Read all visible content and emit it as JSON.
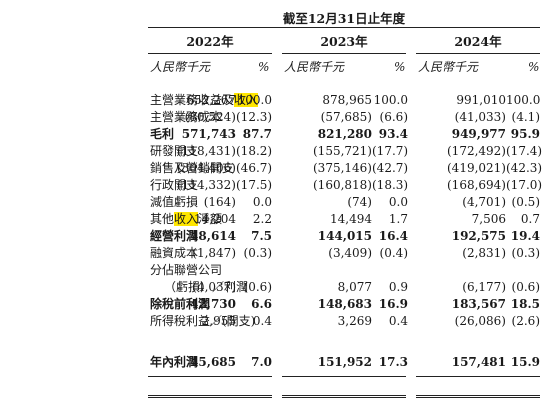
{
  "header": {
    "period": "截至12月31日止年度",
    "years": [
      {
        "year": "2022年",
        "currency": "人民幣千元",
        "pct": "%"
      },
      {
        "year": "2023年",
        "currency": "人民幣千元",
        "pct": "%"
      },
      {
        "year": "2024年",
        "currency": "人民幣千元",
        "pct": "%"
      }
    ]
  },
  "rows": [
    {
      "label": "主營業務收益及",
      "highlight": "收入",
      "label_after": "",
      "v": [
        "652,267",
        "100.0",
        "878,965",
        "100.0",
        "991,010",
        "100.0"
      ]
    },
    {
      "label": "主營業務成本",
      "v": [
        "(80,524)",
        "(12.3)",
        "(57,685)",
        "(6.6)",
        "(41,033)",
        "(4.1)"
      ]
    },
    {
      "label": "毛利",
      "bold": true,
      "v": [
        "571,743",
        "87.7",
        "821,280",
        "93.4",
        "949,977",
        "95.9"
      ]
    },
    {
      "label": "研發開支",
      "v": [
        "(118,431)",
        "(18.2)",
        "(155,721)",
        "(17.7)",
        "(172,492)",
        "(17.4)"
      ]
    },
    {
      "label": "銷售及營銷開支",
      "v": [
        "(304,406)",
        "(46.7)",
        "(375,146)",
        "(42.7)",
        "(419,021)",
        "(42.3)"
      ]
    },
    {
      "label": "行政開支",
      "v": [
        "(114,332)",
        "(17.5)",
        "(160,818)",
        "(18.3)",
        "(168,694)",
        "(17.0)"
      ]
    },
    {
      "label": "減值虧損",
      "v": [
        "(164)",
        "0.0",
        "(74)",
        "0.0",
        "(4,701)",
        "(0.5)"
      ]
    },
    {
      "label": "其他",
      "highlight": "收入",
      "label_after": "淨額",
      "v": [
        "14,204",
        "2.2",
        "14,494",
        "1.7",
        "7,506",
        "0.7"
      ]
    },
    {
      "label": "經營利潤",
      "bold": true,
      "v": [
        "48,614",
        "7.5",
        "144,015",
        "16.4",
        "192,575",
        "19.4"
      ]
    },
    {
      "label": "融資成本",
      "v": [
        "(1,847)",
        "(0.3)",
        "(3,409)",
        "(0.4)",
        "(2,831)",
        "(0.3)"
      ]
    },
    {
      "label": "分佔聯營公司",
      "v": [
        "",
        "",
        "",
        "",
        "",
        ""
      ]
    },
    {
      "label": "（虧損）／利潤",
      "indent": true,
      "v": [
        "(4,037)",
        "(0.6)",
        "8,077",
        "0.9",
        "(6,177)",
        "(0.6)"
      ]
    },
    {
      "label": "除稅前利潤",
      "bold": true,
      "v": [
        "42,730",
        "6.6",
        "148,683",
        "16.9",
        "183,567",
        "18.5"
      ]
    },
    {
      "label": "所得稅利益／(開支)",
      "v": [
        "2,955",
        "0.4",
        "3,269",
        "0.4",
        "(26,086)",
        "(2.6)"
      ]
    },
    {
      "label": "年內利潤",
      "bold": true,
      "v": [
        "45,685",
        "7.0",
        "151,952",
        "17.3",
        "157,481",
        "15.9"
      ]
    }
  ]
}
